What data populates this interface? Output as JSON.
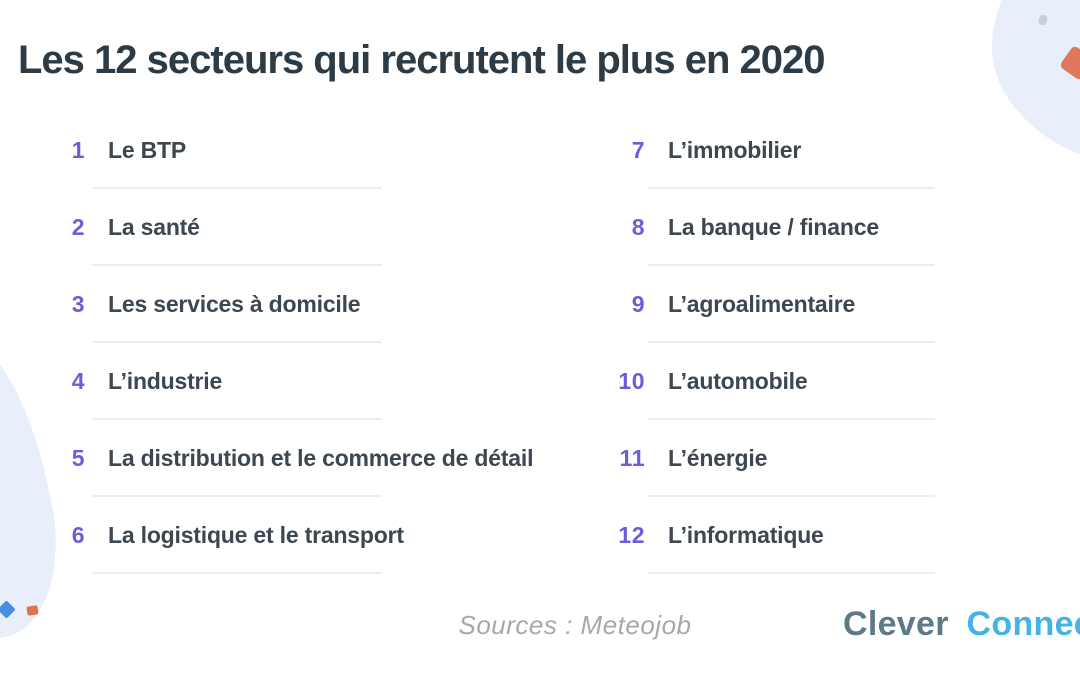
{
  "page": {
    "title": "Les 12 secteurs qui recrutent le plus en 2020",
    "source_label": "Sources : Meteojob"
  },
  "logo": {
    "part1": "Clever",
    "part2": "Connect"
  },
  "sectors": {
    "left": [
      {
        "rank": "1",
        "label": "Le BTP"
      },
      {
        "rank": "2",
        "label": "La santé"
      },
      {
        "rank": "3",
        "label": "Les services à domicile"
      },
      {
        "rank": "4",
        "label": "L’industrie"
      },
      {
        "rank": "5",
        "label": "La distribution et le commerce de détail"
      },
      {
        "rank": "6",
        "label": "La logistique et le transport"
      }
    ],
    "right": [
      {
        "rank": "7",
        "label": "L’immobilier"
      },
      {
        "rank": "8",
        "label": "La banque / finance"
      },
      {
        "rank": "9",
        "label": "L’agroalimentaire"
      },
      {
        "rank": "10",
        "label": "L’automobile"
      },
      {
        "rank": "11",
        "label": "L’énergie"
      },
      {
        "rank": "12",
        "label": "L’informatique"
      }
    ]
  },
  "colors": {
    "accent_purple": "#6b5fd8",
    "title_text": "#2c3b45",
    "label_text": "#3d4751",
    "divider": "#ededed",
    "blob_blue": "#e9effa",
    "deco_orange_diamond": "#e0795b",
    "deco_orange_square": "#e0714b",
    "deco_blue_diamond": "#4a8de0",
    "deco_gray_dot": "#c8cedb",
    "source_text": "#a8a8ab",
    "logo_gray": "#5c7a8a",
    "logo_blue": "#45b4e5"
  }
}
